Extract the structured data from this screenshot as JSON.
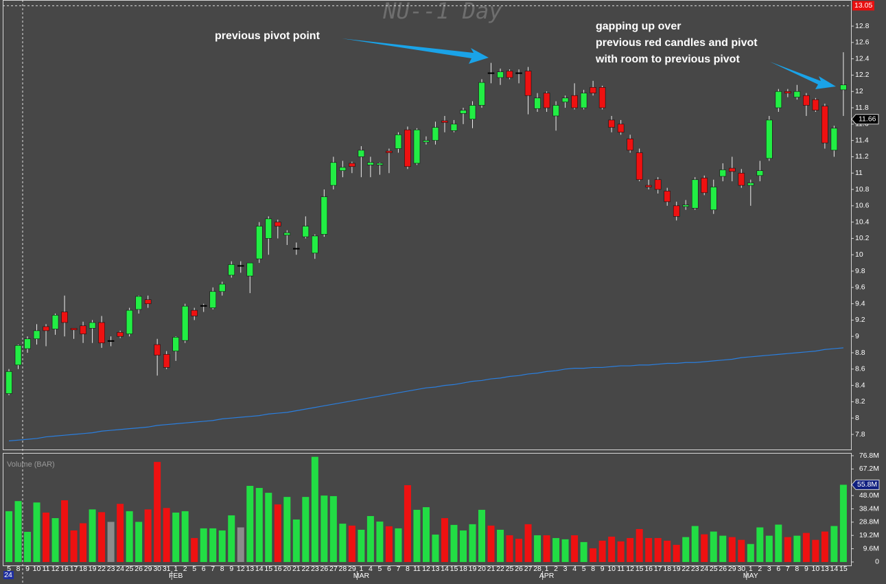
{
  "chart_data": [
    {
      "type": "candlestick",
      "title": "NU--1 Day",
      "categories": [
        "5",
        "8",
        "9",
        "10",
        "11",
        "12",
        "16",
        "17",
        "18",
        "19",
        "22",
        "23",
        "24",
        "25",
        "26",
        "29",
        "30",
        "31",
        "1",
        "2",
        "5",
        "6",
        "7",
        "8",
        "9",
        "12",
        "13",
        "14",
        "15",
        "16",
        "20",
        "21",
        "22",
        "23",
        "26",
        "27",
        "28",
        "29",
        "1",
        "4",
        "5",
        "6",
        "7",
        "8",
        "11",
        "12",
        "13",
        "14",
        "15",
        "18",
        "19",
        "20",
        "21",
        "22",
        "25",
        "26",
        "27",
        "28",
        "1",
        "2",
        "3",
        "4",
        "5",
        "8",
        "9",
        "10",
        "11",
        "12",
        "15",
        "16",
        "17",
        "18",
        "19",
        "22",
        "23",
        "24",
        "25",
        "26",
        "29",
        "30",
        "1",
        "2",
        "3",
        "6",
        "7",
        "8",
        "9",
        "10",
        "13",
        "14",
        "15"
      ],
      "month_labels": [
        {
          "index": 18,
          "label": "FEB"
        },
        {
          "index": 38,
          "label": "MAR"
        },
        {
          "index": 58,
          "label": "APR"
        },
        {
          "index": 80,
          "label": "MAY"
        }
      ],
      "year_label": "24",
      "open": [
        8.3,
        8.65,
        8.85,
        8.97,
        9.12,
        9.09,
        9.3,
        9.1,
        9.13,
        9.1,
        9.17,
        8.95,
        9.05,
        9.03,
        9.33,
        9.45,
        8.9,
        8.78,
        8.82,
        8.95,
        9.32,
        9.38,
        9.35,
        9.55,
        9.75,
        9.87,
        9.74,
        9.95,
        10.2,
        10.4,
        10.24,
        10.08,
        10.22,
        10.02,
        10.25,
        10.85,
        11.03,
        11.12,
        11.2,
        11.1,
        11.1,
        11.27,
        11.3,
        11.53,
        11.12,
        11.38,
        11.4,
        11.64,
        11.52,
        11.73,
        11.66,
        11.83,
        12.23,
        12.17,
        12.25,
        12.23,
        12.25,
        11.79,
        11.98,
        11.7,
        11.87,
        11.95,
        11.8,
        12.05,
        12.05,
        11.65,
        11.6,
        11.42,
        11.25,
        10.85,
        10.92,
        10.78,
        10.6,
        10.59,
        10.57,
        10.94,
        10.55,
        10.96,
        11.06,
        11.0,
        10.85,
        10.97,
        11.18,
        11.8,
        12.0,
        11.93,
        11.95,
        11.9,
        11.82,
        11.28,
        12.02
      ],
      "high": [
        8.6,
        8.9,
        9.0,
        9.15,
        9.15,
        9.28,
        9.5,
        9.1,
        9.18,
        9.2,
        9.25,
        9.0,
        9.07,
        9.35,
        9.5,
        9.5,
        8.97,
        8.82,
        9.0,
        9.4,
        9.35,
        9.4,
        9.6,
        9.67,
        9.92,
        9.92,
        9.9,
        10.4,
        10.47,
        10.43,
        10.3,
        10.15,
        10.47,
        10.25,
        10.8,
        11.2,
        11.15,
        11.14,
        11.33,
        11.2,
        11.13,
        11.3,
        11.5,
        11.57,
        11.55,
        11.45,
        11.63,
        11.7,
        11.65,
        11.8,
        11.88,
        12.15,
        12.35,
        12.28,
        12.27,
        12.27,
        12.3,
        11.98,
        12.0,
        11.88,
        11.95,
        12.1,
        12.02,
        12.13,
        12.07,
        11.7,
        11.65,
        11.47,
        11.3,
        10.92,
        10.95,
        10.82,
        10.65,
        10.67,
        10.95,
        10.97,
        10.92,
        11.12,
        11.2,
        11.05,
        10.92,
        11.15,
        11.7,
        12.03,
        12.03,
        12.08,
        11.98,
        11.92,
        11.85,
        11.58,
        12.48
      ],
      "low": [
        8.28,
        8.6,
        8.8,
        8.9,
        8.88,
        9.02,
        9.0,
        8.97,
        8.92,
        8.92,
        8.86,
        8.88,
        8.98,
        9.0,
        9.28,
        9.35,
        8.52,
        8.6,
        8.7,
        8.92,
        9.2,
        9.3,
        9.33,
        9.5,
        9.72,
        9.78,
        9.53,
        9.9,
        10.0,
        10.2,
        10.12,
        10.0,
        10.2,
        9.95,
        10.22,
        10.8,
        10.95,
        11.0,
        10.95,
        10.95,
        10.98,
        11.0,
        11.25,
        11.05,
        11.1,
        11.35,
        11.35,
        11.5,
        11.5,
        11.6,
        11.55,
        11.8,
        12.1,
        12.08,
        12.15,
        12.1,
        11.72,
        11.75,
        11.75,
        11.52,
        11.8,
        11.78,
        11.78,
        11.95,
        11.78,
        11.5,
        11.47,
        11.25,
        10.9,
        10.8,
        10.75,
        10.6,
        10.42,
        10.55,
        10.55,
        10.73,
        10.5,
        10.9,
        10.9,
        10.82,
        10.6,
        10.9,
        11.15,
        11.75,
        11.93,
        11.9,
        11.7,
        11.75,
        11.3,
        11.2,
        11.7
      ],
      "close": [
        8.57,
        8.89,
        8.97,
        9.07,
        9.07,
        9.26,
        9.17,
        9.08,
        9.03,
        9.17,
        8.92,
        8.95,
        9.0,
        9.32,
        9.49,
        9.4,
        8.77,
        8.62,
        8.99,
        9.37,
        9.25,
        9.38,
        9.55,
        9.64,
        9.88,
        9.87,
        9.9,
        10.35,
        10.44,
        10.35,
        10.27,
        10.08,
        10.35,
        10.23,
        10.71,
        11.13,
        11.07,
        11.08,
        11.28,
        11.13,
        11.12,
        11.25,
        11.47,
        11.08,
        11.53,
        11.4,
        11.56,
        11.62,
        11.6,
        11.77,
        11.83,
        12.11,
        12.23,
        12.24,
        12.17,
        12.23,
        11.95,
        11.92,
        11.8,
        11.83,
        11.92,
        11.8,
        11.98,
        11.98,
        11.8,
        11.56,
        11.5,
        11.28,
        10.92,
        10.83,
        10.8,
        10.65,
        10.47,
        10.61,
        10.92,
        10.76,
        10.83,
        11.04,
        11.02,
        10.85,
        10.88,
        11.03,
        11.65,
        12.0,
        11.98,
        12.0,
        11.83,
        11.77,
        11.37,
        11.55,
        12.08
      ],
      "sma": [
        7.72,
        7.73,
        7.74,
        7.75,
        7.77,
        7.78,
        7.79,
        7.8,
        7.81,
        7.82,
        7.84,
        7.85,
        7.86,
        7.87,
        7.88,
        7.89,
        7.91,
        7.92,
        7.93,
        7.94,
        7.95,
        7.96,
        7.97,
        7.99,
        8.0,
        8.01,
        8.02,
        8.03,
        8.05,
        8.06,
        8.07,
        8.09,
        8.11,
        8.13,
        8.15,
        8.17,
        8.19,
        8.21,
        8.23,
        8.25,
        8.27,
        8.29,
        8.31,
        8.33,
        8.35,
        8.37,
        8.38,
        8.4,
        8.41,
        8.43,
        8.45,
        8.46,
        8.48,
        8.49,
        8.51,
        8.52,
        8.54,
        8.55,
        8.57,
        8.58,
        8.6,
        8.61,
        8.61,
        8.62,
        8.62,
        8.63,
        8.64,
        8.64,
        8.65,
        8.65,
        8.66,
        8.67,
        8.67,
        8.68,
        8.68,
        8.69,
        8.7,
        8.71,
        8.72,
        8.74,
        8.75,
        8.76,
        8.77,
        8.78,
        8.79,
        8.8,
        8.81,
        8.82,
        8.84,
        8.85,
        8.86
      ],
      "up_color": "#22ee44",
      "down_color": "#ee1111",
      "doji_color": "#000000",
      "sma_color": "#2a7fe0",
      "ylim": [
        7.615,
        13.12
      ],
      "yticks": [
        7.8,
        8,
        8.2,
        8.4,
        8.6,
        8.8,
        9,
        9.2,
        9.4,
        9.6,
        9.8,
        10,
        10.2,
        10.4,
        10.6,
        10.8,
        11,
        11.2,
        11.4,
        11.6,
        11.8,
        12,
        12.2,
        12.4,
        12.6,
        12.8
      ],
      "crosshair_price": 13.05,
      "last_price": 11.66,
      "annotations": [
        {
          "lines": [
            "previous pivot point"
          ]
        },
        {
          "lines": [
            "gapping up over",
            "previous red candles and pivot",
            "with room to previous pivot"
          ]
        }
      ]
    },
    {
      "type": "bar",
      "label": "Volume (BAR)",
      "values": [
        36.7,
        44,
        21.8,
        43,
        35.7,
        31.7,
        44.6,
        22.8,
        28,
        38,
        36,
        29,
        42,
        36.7,
        29,
        38,
        72.3,
        39,
        35.7,
        36.7,
        17.3,
        24.3,
        24.3,
        22.8,
        33.7,
        25,
        55,
        53.5,
        50,
        41.6,
        47,
        30.7,
        47,
        76,
        48,
        47.6,
        27.7,
        26.3,
        23.3,
        33.2,
        29.2,
        25.8,
        24.3,
        55.5,
        37.7,
        39.6,
        19.8,
        31.7,
        26.8,
        22.8,
        27.3,
        37.7,
        26.3,
        23.3,
        19.3,
        16.8,
        27.3,
        19.3,
        19.3,
        17.3,
        16.4,
        19.3,
        14.4,
        9.9,
        15.4,
        18.3,
        14.9,
        17.3,
        23.8,
        17.3,
        17.3,
        15.4,
        12.4,
        18,
        26,
        20,
        22,
        19,
        18,
        16,
        13,
        25,
        19,
        27,
        18,
        19,
        21,
        16,
        22,
        26,
        55.8
      ],
      "colors": [
        "#22dd44",
        "#22dd44",
        "#22dd44",
        "#22dd44",
        "#ee1111",
        "#22dd44",
        "#ee1111",
        "#ee1111",
        "#ee1111",
        "#22dd44",
        "#ee1111",
        "#8c8c8c",
        "#ee1111",
        "#22dd44",
        "#22dd44",
        "#ee1111",
        "#ee1111",
        "#ee1111",
        "#22dd44",
        "#22dd44",
        "#ee1111",
        "#22dd44",
        "#22dd44",
        "#22dd44",
        "#22dd44",
        "#8c8c8c",
        "#22dd44",
        "#22dd44",
        "#22dd44",
        "#ee1111",
        "#22dd44",
        "#22dd44",
        "#22dd44",
        "#22dd44",
        "#22dd44",
        "#22dd44",
        "#22dd44",
        "#ee1111",
        "#22dd44",
        "#22dd44",
        "#22dd44",
        "#ee1111",
        "#22dd44",
        "#ee1111",
        "#22dd44",
        "#22dd44",
        "#22dd44",
        "#ee1111",
        "#22dd44",
        "#22dd44",
        "#22dd44",
        "#22dd44",
        "#ee1111",
        "#22dd44",
        "#ee1111",
        "#ee1111",
        "#ee1111",
        "#22dd44",
        "#ee1111",
        "#22dd44",
        "#22dd44",
        "#ee1111",
        "#22dd44",
        "#ee1111",
        "#ee1111",
        "#ee1111",
        "#ee1111",
        "#ee1111",
        "#ee1111",
        "#ee1111",
        "#ee1111",
        "#ee1111",
        "#ee1111",
        "#22dd44",
        "#22dd44",
        "#ee1111",
        "#22dd44",
        "#22dd44",
        "#ee1111",
        "#ee1111",
        "#22dd44",
        "#22dd44",
        "#22dd44",
        "#22dd44",
        "#ee1111",
        "#22dd44",
        "#ee1111",
        "#ee1111",
        "#ee1111",
        "#22dd44",
        "#22dd44"
      ],
      "ylim": [
        -3,
        78.8
      ],
      "yticks": [
        0,
        {
          "value": 9.6,
          "label": "9.6M"
        },
        {
          "value": 19.2,
          "label": "19.2M"
        },
        {
          "value": 28.8,
          "label": "28.8M"
        },
        {
          "value": 38.4,
          "label": "38.4M"
        },
        {
          "value": 48.0,
          "label": "48.0M"
        },
        {
          "value": 67.2,
          "label": "67.2M"
        },
        {
          "value": 76.8,
          "label": "76.8M"
        }
      ],
      "last_marker": {
        "value": 55.8,
        "label": "55.8M"
      }
    }
  ]
}
